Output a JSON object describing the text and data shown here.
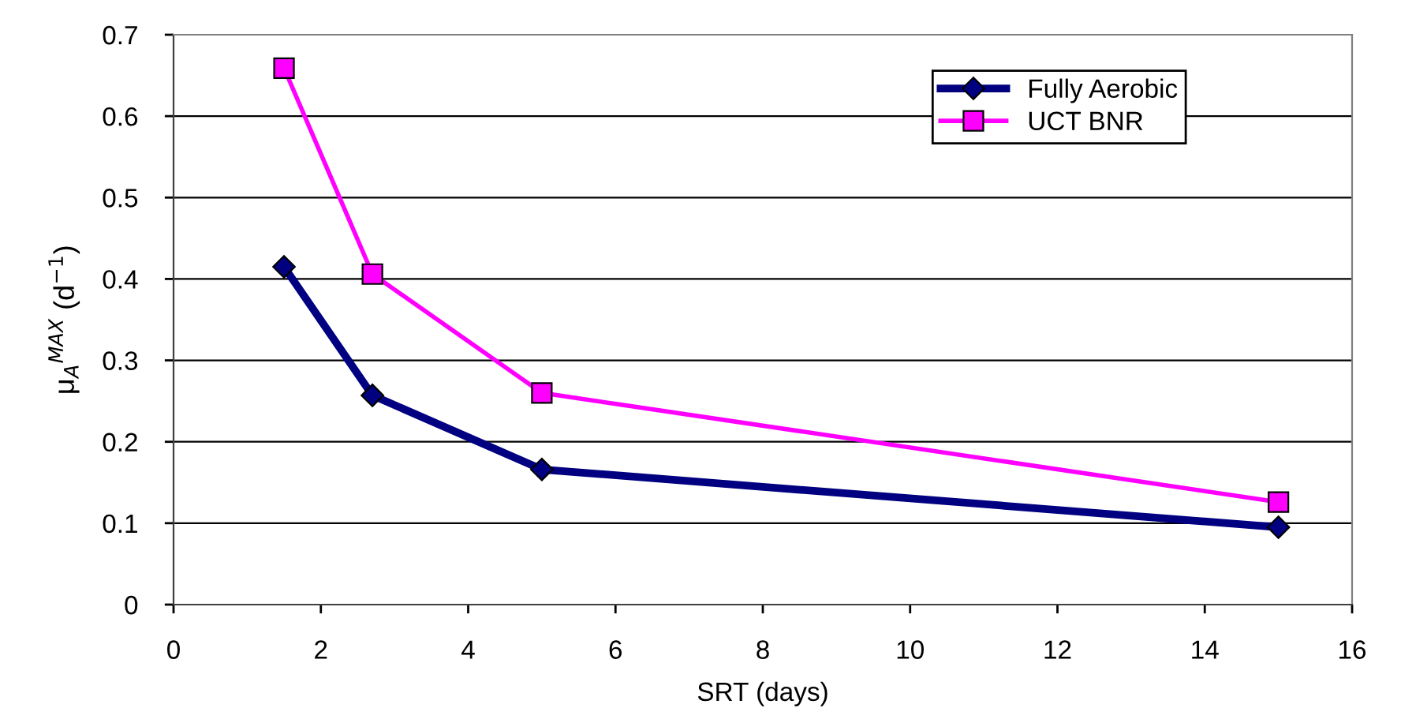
{
  "chart_data": {
    "type": "line",
    "xlabel": "SRT (days)",
    "ylabel": "μ$_{A}$$^{MAX}$ (d$^{−1}$)",
    "xlim": [
      0,
      16
    ],
    "xticks": [
      0,
      2,
      4,
      6,
      8,
      10,
      12,
      14,
      16
    ],
    "ylim": [
      0,
      0.7
    ],
    "yticks": [
      0,
      0.1,
      0.2,
      0.3,
      0.4,
      0.5,
      0.6,
      0.7
    ],
    "grid": "y",
    "legend": "top right",
    "series": [
      {
        "name": "Fully Aerobic",
        "color": "#000080",
        "marker": "diamond",
        "x": [
          1.5,
          2.7,
          5,
          15
        ],
        "values": [
          0.415,
          0.257,
          0.166,
          0.095
        ]
      },
      {
        "name": "UCT BNR",
        "color": "#ff00ff",
        "marker": "square",
        "x": [
          1.5,
          2.7,
          5,
          15
        ],
        "values": [
          0.659,
          0.406,
          0.26,
          0.126
        ]
      }
    ]
  }
}
